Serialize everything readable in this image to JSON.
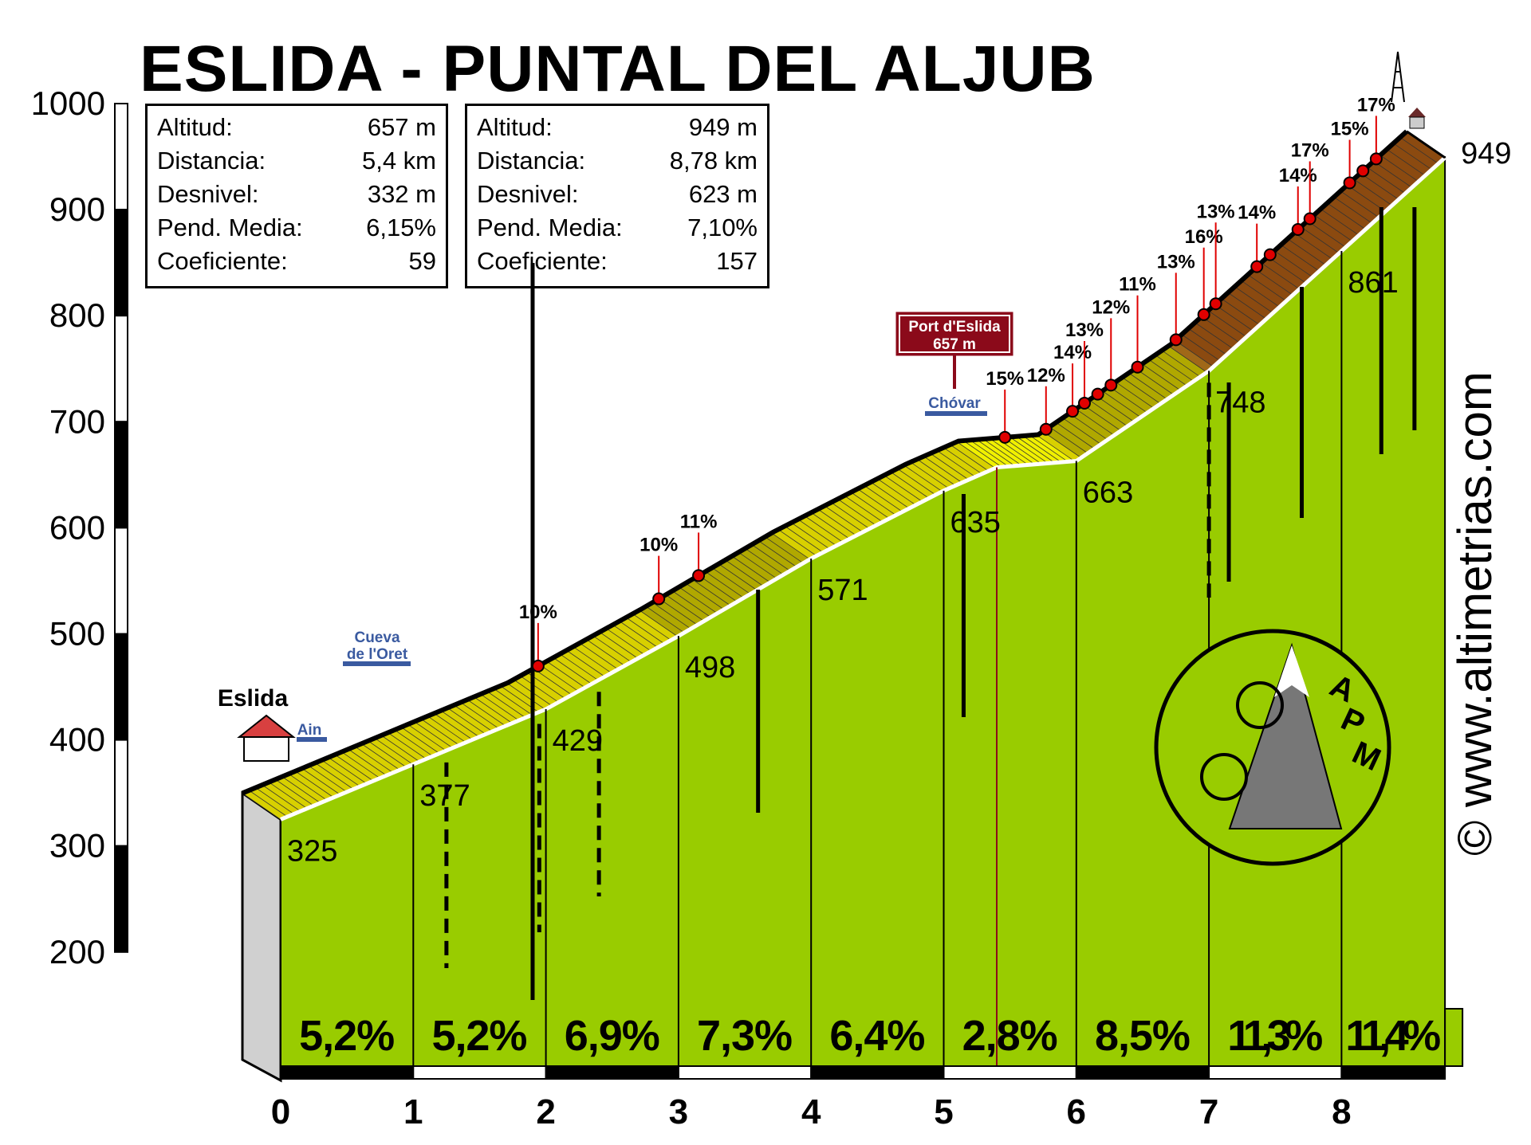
{
  "title": "ESLIDA - PUNTAL DEL ALJUB",
  "info_boxes": [
    {
      "rows": [
        [
          "Altitud:",
          "657 m"
        ],
        [
          "Distancia:",
          "5,4 km"
        ],
        [
          "Desnivel:",
          "332 m"
        ],
        [
          "Pend. Media:",
          "6,15%"
        ],
        [
          "Coeficiente:",
          "59"
        ]
      ]
    },
    {
      "rows": [
        [
          "Altitud:",
          "949 m"
        ],
        [
          "Distancia:",
          "8,78 km"
        ],
        [
          "Desnivel:",
          "623 m"
        ],
        [
          "Pend. Media:",
          "7,10%"
        ],
        [
          "Coeficiente:",
          "157"
        ]
      ]
    }
  ],
  "chart_data": {
    "type": "area",
    "title": "ESLIDA - PUNTAL DEL ALJUB",
    "xlabel": "",
    "ylabel": "",
    "xlim": [
      0,
      8.78
    ],
    "ylim": [
      200,
      1000
    ],
    "y_ticks": [
      "1000",
      "900",
      "800",
      "700",
      "600",
      "500",
      "400",
      "300",
      "200"
    ],
    "x_ticks": [
      "0",
      "1",
      "2",
      "3",
      "4",
      "5",
      "6",
      "7",
      "8"
    ],
    "profile": [
      {
        "km": 0,
        "elev": 325,
        "label": "325"
      },
      {
        "km": 1,
        "elev": 377,
        "label": "377"
      },
      {
        "km": 2,
        "elev": 429,
        "label": "429"
      },
      {
        "km": 3,
        "elev": 498,
        "label": "498"
      },
      {
        "km": 4,
        "elev": 571,
        "label": "571"
      },
      {
        "km": 5,
        "elev": 635,
        "label": "635"
      },
      {
        "km": 5.4,
        "elev": 657,
        "label": ""
      },
      {
        "km": 6,
        "elev": 663,
        "label": "663"
      },
      {
        "km": 7,
        "elev": 748,
        "label": "748"
      },
      {
        "km": 8,
        "elev": 861,
        "label": "861"
      },
      {
        "km": 8.78,
        "elev": 949,
        "label": "949"
      }
    ],
    "km_gradients": [
      "5,2%",
      "5,2%",
      "6,9%",
      "7,3%",
      "6,4%",
      "2,8%",
      "8,5%",
      "11,3%",
      "11,4%"
    ],
    "km_gradient_values": [
      5.2,
      5.2,
      6.9,
      7.3,
      6.4,
      2.8,
      8.5,
      11.3,
      11.4
    ],
    "steep_points": [
      {
        "km": 2.23,
        "label": "10%"
      },
      {
        "km": 3.14,
        "label": "10%"
      },
      {
        "km": 3.44,
        "label": "11%"
      },
      {
        "km": 5.75,
        "label": "15%"
      },
      {
        "km": 6.06,
        "label": "12%"
      },
      {
        "km": 6.26,
        "label": "14%"
      },
      {
        "km": 6.35,
        "label": "13%"
      },
      {
        "km": 6.45,
        "label": ""
      },
      {
        "km": 6.55,
        "label": "12%"
      },
      {
        "km": 6.75,
        "label": "11%"
      },
      {
        "km": 7.04,
        "label": "13%"
      },
      {
        "km": 7.25,
        "label": "16%"
      },
      {
        "km": 7.34,
        "label": "13%"
      },
      {
        "km": 7.65,
        "label": "14%"
      },
      {
        "km": 7.75,
        "label": ""
      },
      {
        "km": 7.96,
        "label": "14%"
      },
      {
        "km": 8.05,
        "label": "17%"
      },
      {
        "km": 8.35,
        "label": "15%"
      },
      {
        "km": 8.45,
        "label": ""
      },
      {
        "km": 8.55,
        "label": "17%"
      }
    ],
    "grid": false,
    "legend": "none"
  },
  "annotations": {
    "start_town": "Eslida",
    "cave": "Cueva\nde l'Oret",
    "cave_line1": "Cueva",
    "cave_line2": "de l'Oret",
    "ain": "Ain",
    "pass_name": "Port d'Eslida",
    "pass_alt": "657 m",
    "chovar": "Chóvar",
    "watermark": "© www.altimetrias.com",
    "logo": "APM"
  },
  "colors": {
    "green": "#99cc00",
    "road_blue": "#3a5aa0",
    "marker_red": "#e00000",
    "sign_red": "#8b0a1a"
  }
}
